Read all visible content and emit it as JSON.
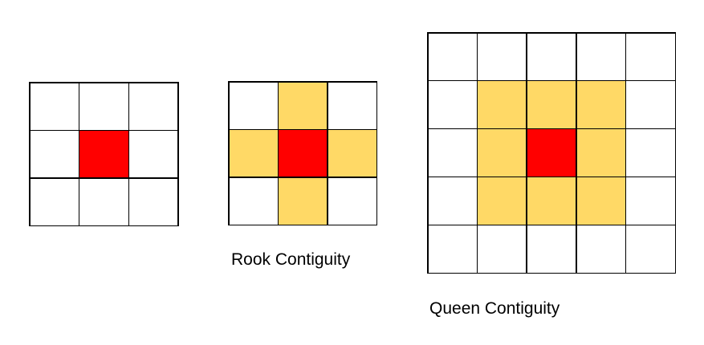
{
  "figure": {
    "background": "#ffffff",
    "line_color": "#000000",
    "colors": {
      "focal": "#ff0000",
      "neighbor": "#ffd966",
      "empty": "#ffffff"
    },
    "diagrams": [
      {
        "id": "focal-only",
        "label": "",
        "rows": 3,
        "cols": 3,
        "cells": [
          "empty",
          "empty",
          "empty",
          "empty",
          "focal",
          "empty",
          "empty",
          "empty",
          "empty"
        ]
      },
      {
        "id": "rook",
        "label": "Rook Contiguity",
        "rows": 3,
        "cols": 3,
        "cells": [
          "empty",
          "neighbor",
          "empty",
          "neighbor",
          "focal",
          "neighbor",
          "empty",
          "neighbor",
          "empty"
        ]
      },
      {
        "id": "queen",
        "label": "Queen Contiguity",
        "rows": 5,
        "cols": 5,
        "cells": [
          "empty",
          "empty",
          "empty",
          "empty",
          "empty",
          "empty",
          "neighbor",
          "neighbor",
          "neighbor",
          "empty",
          "empty",
          "neighbor",
          "focal",
          "neighbor",
          "empty",
          "empty",
          "neighbor",
          "neighbor",
          "neighbor",
          "empty",
          "empty",
          "empty",
          "empty",
          "empty",
          "empty"
        ]
      }
    ]
  }
}
